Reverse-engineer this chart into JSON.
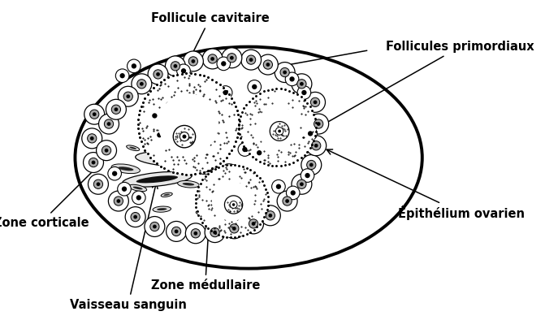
{
  "labels": {
    "follicule_cavitaire": "Follicule cavitaire",
    "follicules_primordiaux": "Follicules primordiaux",
    "zone_corticale": "Zone corticale",
    "zone_medullaire": "Zone médullaire",
    "vaisseau_sanguin": "Vaisseau sanguin",
    "epithelium_ovarien": "Épithélium ovarien"
  },
  "bg_color": "#ffffff"
}
